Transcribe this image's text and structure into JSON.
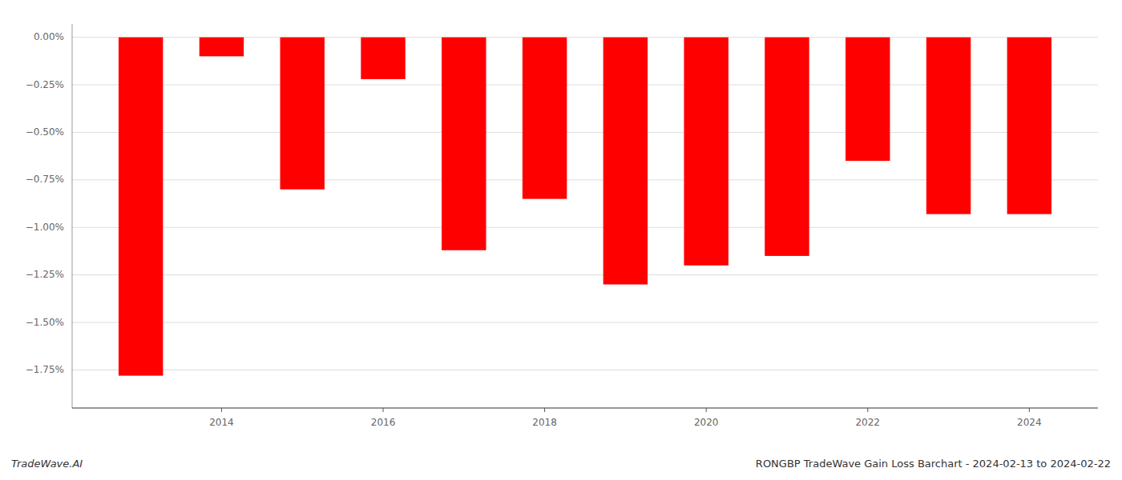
{
  "chart_data": {
    "type": "bar",
    "title": "RONGBP TradeWave Gain Loss Barchart - 2024-02-13 to 2024-02-22",
    "annotations": [
      "TradeWave.AI"
    ],
    "x": [
      2013,
      2014,
      2015,
      2016,
      2017,
      2018,
      2019,
      2020,
      2021,
      2022,
      2023,
      2024
    ],
    "values": [
      -0.0178,
      -0.001,
      -0.008,
      -0.0022,
      -0.0112,
      -0.0085,
      -0.013,
      -0.012,
      -0.0115,
      -0.0065,
      -0.0093,
      -0.0093
    ],
    "color": "#ff0000",
    "xlim": [
      2012.15,
      2024.85
    ],
    "xticks": [
      2014,
      2016,
      2018,
      2020,
      2022,
      2024
    ],
    "ylim": [
      -0.0195,
      0.0007
    ],
    "yticks": [
      {
        "value": 0.0,
        "label": "0.00%"
      },
      {
        "value": -0.0025,
        "label": "−0.25%"
      },
      {
        "value": -0.005,
        "label": "−0.50%"
      },
      {
        "value": -0.0075,
        "label": "−0.75%"
      },
      {
        "value": -0.01,
        "label": "−1.00%"
      },
      {
        "value": -0.0125,
        "label": "−1.25%"
      },
      {
        "value": -0.015,
        "label": "−1.50%"
      },
      {
        "value": -0.0175,
        "label": "−1.75%"
      }
    ],
    "grid": true
  }
}
